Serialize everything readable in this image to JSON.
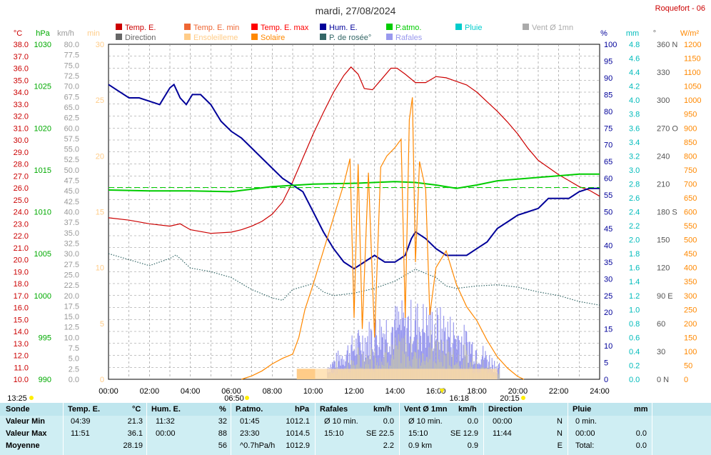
{
  "title": "mardi, 27/08/2024",
  "station": "Roquefort - 06",
  "legend": [
    {
      "label": "Temp. E.",
      "color": "#cc0000"
    },
    {
      "label": "Temp. E. min",
      "color": "#ee6633"
    },
    {
      "label": "Temp. E. max",
      "color": "#ff0000"
    },
    {
      "label": "Hum. E.",
      "color": "#000099"
    },
    {
      "label": "P.atmo.",
      "color": "#00cc00"
    },
    {
      "label": "Pluie",
      "color": "#00cccc"
    },
    {
      "label": "Vent Ø 1mn",
      "color": "#aaaaaa"
    },
    {
      "label": "Direction",
      "color": "#666666"
    },
    {
      "label": "Ensoleilleme",
      "color": "#ffcc88"
    },
    {
      "label": "Solaire",
      "color": "#ff8800"
    },
    {
      "label": "P. de rosée°",
      "color": "#336666"
    },
    {
      "label": "Rafales",
      "color": "#9999ee"
    }
  ],
  "axis_units": {
    "temp": "°C",
    "press": "hPa",
    "wind": "km/h",
    "sun": "min",
    "hum": "%",
    "rain": "mm",
    "dir": "°",
    "solar": "W/m²"
  },
  "markers": {
    "left_time": "13:25",
    "sunrise": "06:50",
    "noon": "16:18",
    "sunset": "20:15"
  },
  "chart_data": {
    "type": "line",
    "x_axis": {
      "label": "",
      "ticks": [
        "00:00",
        "02:00",
        "04:00",
        "06:00",
        "08:00",
        "10:00",
        "12:00",
        "14:00",
        "16:00",
        "18:00",
        "20:00",
        "22:00",
        "24:00"
      ],
      "range": [
        0,
        24
      ]
    },
    "y_axes": {
      "temp": {
        "range": [
          10,
          38
        ],
        "step": 1,
        "unit": "°C"
      },
      "pressure": {
        "range": [
          990,
          1030
        ],
        "step": 5,
        "unit": "hPa"
      },
      "wind": {
        "range": [
          0,
          80
        ],
        "step": 2.5,
        "unit": "km/h"
      },
      "sunshine": {
        "range": [
          0,
          30
        ],
        "step": 5,
        "unit": "min"
      },
      "humidity": {
        "range": [
          0,
          100
        ],
        "step": 5,
        "unit": "%"
      },
      "rain": {
        "range": [
          0,
          4.8
        ],
        "step": 0.2,
        "unit": "mm"
      },
      "direction": {
        "ticks": [
          "0 N",
          "30",
          "60",
          "90 E",
          "120",
          "150",
          "180 S",
          "210",
          "240",
          "270 O",
          "300",
          "330",
          "360 N"
        ]
      },
      "solar": {
        "range": [
          0,
          1200
        ],
        "step": 50,
        "unit": "W/m²"
      }
    },
    "series": [
      {
        "name": "Temp. E.",
        "axis": "temp",
        "color": "#cc0000",
        "points": [
          [
            0,
            23.5
          ],
          [
            1,
            23.3
          ],
          [
            2,
            23.0
          ],
          [
            3,
            22.8
          ],
          [
            3.5,
            23.0
          ],
          [
            4,
            22.5
          ],
          [
            5,
            22.2
          ],
          [
            6,
            22.3
          ],
          [
            6.5,
            22.5
          ],
          [
            7,
            22.8
          ],
          [
            7.5,
            23.2
          ],
          [
            8,
            23.8
          ],
          [
            8.5,
            24.8
          ],
          [
            9,
            26.5
          ],
          [
            9.5,
            28.5
          ],
          [
            10,
            30.5
          ],
          [
            10.5,
            32.3
          ],
          [
            11,
            34.0
          ],
          [
            11.5,
            35.4
          ],
          [
            11.85,
            36.1
          ],
          [
            12.2,
            35.5
          ],
          [
            12.5,
            34.3
          ],
          [
            12.9,
            34.2
          ],
          [
            13.3,
            35.0
          ],
          [
            13.8,
            36.0
          ],
          [
            14.1,
            36.0
          ],
          [
            14.5,
            35.5
          ],
          [
            15,
            34.8
          ],
          [
            15.5,
            34.8
          ],
          [
            16,
            35.3
          ],
          [
            16.5,
            35.2
          ],
          [
            17,
            34.9
          ],
          [
            17.5,
            34.6
          ],
          [
            18,
            34.0
          ],
          [
            18.5,
            33.2
          ],
          [
            19,
            32.4
          ],
          [
            19.5,
            31.5
          ],
          [
            20,
            30.5
          ],
          [
            20.5,
            29.3
          ],
          [
            21,
            28.3
          ],
          [
            21.5,
            27.7
          ],
          [
            22,
            27.1
          ],
          [
            22.5,
            26.6
          ],
          [
            23,
            26.1
          ],
          [
            23.5,
            25.8
          ],
          [
            24,
            25.3
          ]
        ]
      },
      {
        "name": "Hum. E.",
        "axis": "humidity",
        "color": "#000099",
        "points": [
          [
            0,
            88
          ],
          [
            0.5,
            86
          ],
          [
            1,
            84
          ],
          [
            1.5,
            84
          ],
          [
            2,
            83
          ],
          [
            2.5,
            82
          ],
          [
            3,
            87
          ],
          [
            3.2,
            88
          ],
          [
            3.5,
            84
          ],
          [
            3.8,
            82
          ],
          [
            4.1,
            85
          ],
          [
            4.5,
            85
          ],
          [
            5,
            82
          ],
          [
            5.5,
            77
          ],
          [
            6,
            74
          ],
          [
            6.5,
            72
          ],
          [
            7,
            69
          ],
          [
            7.5,
            66
          ],
          [
            8,
            63
          ],
          [
            8.5,
            60
          ],
          [
            9,
            58
          ],
          [
            9.5,
            56
          ],
          [
            10,
            50
          ],
          [
            10.5,
            44
          ],
          [
            11,
            39
          ],
          [
            11.5,
            35
          ],
          [
            12,
            33
          ],
          [
            12.5,
            35
          ],
          [
            13,
            37
          ],
          [
            13.5,
            35
          ],
          [
            14,
            35
          ],
          [
            14.5,
            37
          ],
          [
            14.8,
            42
          ],
          [
            15,
            44
          ],
          [
            15.5,
            42
          ],
          [
            16,
            39
          ],
          [
            16.5,
            37
          ],
          [
            17,
            37
          ],
          [
            17.5,
            37
          ],
          [
            18,
            39
          ],
          [
            18.5,
            41
          ],
          [
            19,
            45
          ],
          [
            19.5,
            47
          ],
          [
            20,
            49
          ],
          [
            20.5,
            50
          ],
          [
            21,
            51
          ],
          [
            21.5,
            54
          ],
          [
            22,
            54
          ],
          [
            22.5,
            54
          ],
          [
            23,
            56
          ],
          [
            23.5,
            57
          ],
          [
            24,
            57
          ]
        ]
      },
      {
        "name": "P.atmo.",
        "axis": "pressure",
        "color": "#00cc00",
        "points": [
          [
            0,
            1012.6
          ],
          [
            2,
            1012.5
          ],
          [
            4,
            1012.5
          ],
          [
            6,
            1012.4
          ],
          [
            8,
            1013.0
          ],
          [
            10,
            1013.3
          ],
          [
            12,
            1013.4
          ],
          [
            14,
            1013.6
          ],
          [
            15,
            1013.5
          ],
          [
            16,
            1013.2
          ],
          [
            17,
            1012.8
          ],
          [
            18,
            1013.2
          ],
          [
            19,
            1013.7
          ],
          [
            20,
            1013.9
          ],
          [
            21,
            1014.1
          ],
          [
            22,
            1014.3
          ],
          [
            23,
            1014.5
          ],
          [
            24,
            1014.5
          ]
        ]
      },
      {
        "name": "P. de rosée°",
        "axis": "temp",
        "color": "#336666",
        "points": [
          [
            0,
            20.5
          ],
          [
            1,
            20.0
          ],
          [
            2,
            19.5
          ],
          [
            3,
            20.1
          ],
          [
            3.3,
            20.4
          ],
          [
            4,
            19.3
          ],
          [
            5,
            19.0
          ],
          [
            6,
            18.5
          ],
          [
            7,
            17.5
          ],
          [
            8,
            16.8
          ],
          [
            8.5,
            16.6
          ],
          [
            9,
            17.5
          ],
          [
            10,
            18.0
          ],
          [
            10.5,
            17.3
          ],
          [
            11,
            17.0
          ],
          [
            12,
            17.2
          ],
          [
            13,
            17.6
          ],
          [
            14,
            18.2
          ],
          [
            15,
            19.2
          ],
          [
            16,
            18.5
          ],
          [
            16.5,
            17.8
          ],
          [
            17,
            17.6
          ],
          [
            18,
            17.8
          ],
          [
            19,
            17.9
          ],
          [
            20,
            17.7
          ],
          [
            21,
            17.3
          ],
          [
            22,
            17.0
          ],
          [
            23,
            16.5
          ],
          [
            24,
            16.2
          ]
        ]
      },
      {
        "name": "Solaire",
        "axis": "solar",
        "color": "#ff8800",
        "points": [
          [
            6.5,
            0
          ],
          [
            7,
            12
          ],
          [
            7.5,
            30
          ],
          [
            8,
            55
          ],
          [
            8.5,
            75
          ],
          [
            9,
            90
          ],
          [
            9.3,
            150
          ],
          [
            9.6,
            250
          ],
          [
            10,
            340
          ],
          [
            10.5,
            460
          ],
          [
            11,
            580
          ],
          [
            11.5,
            700
          ],
          [
            11.8,
            790
          ],
          [
            12,
            220
          ],
          [
            12.2,
            770
          ],
          [
            12.4,
            180
          ],
          [
            12.7,
            740
          ],
          [
            13,
            150
          ],
          [
            13.3,
            760
          ],
          [
            13.6,
            800
          ],
          [
            14,
            830
          ],
          [
            14.3,
            860
          ],
          [
            14.5,
            220
          ],
          [
            14.7,
            930
          ],
          [
            14.85,
            1010
          ],
          [
            15,
            420
          ],
          [
            15.2,
            780
          ],
          [
            15.5,
            680
          ],
          [
            15.7,
            230
          ],
          [
            16,
            400
          ],
          [
            16.5,
            460
          ],
          [
            17,
            340
          ],
          [
            17.5,
            260
          ],
          [
            18,
            210
          ],
          [
            18.5,
            140
          ],
          [
            19,
            80
          ],
          [
            19.5,
            40
          ],
          [
            20,
            10
          ],
          [
            20.3,
            0
          ]
        ]
      }
    ]
  },
  "summary": {
    "header": {
      "c1": "Sonde",
      "c2": "Temp. E.",
      "c2u": "°C",
      "c3": "Hum. E.",
      "c3u": "%",
      "c4": "P.atmo.",
      "c4u": "hPa",
      "c5": "Rafales",
      "c5u": "km/h",
      "c6": "Vent Ø 1mn",
      "c6u": "km/h",
      "c7": "Direction",
      "c8": "Pluie",
      "c8u": "mm"
    },
    "rows": [
      {
        "label": "Valeur Min",
        "temp_t": "04:39",
        "temp_v": "21.3",
        "hum_t": "11:32",
        "hum_v": "32",
        "press_t": "01:45",
        "press_v": "1012.1",
        "gust_t": "Ø 10 min.",
        "gust_v": "0.0",
        "wind_t": "Ø 10 min.",
        "wind_v": "0.0",
        "dir_t": "00:00",
        "dir_v": "N",
        "rain_t": "0 min.",
        "rain_v": ""
      },
      {
        "label": "Valeur Max",
        "temp_t": "11:51",
        "temp_v": "36.1",
        "hum_t": "00:00",
        "hum_v": "88",
        "press_t": "23:30",
        "press_v": "1014.5",
        "gust_t": "15:10",
        "gust_v": "SE 22.5",
        "wind_t": "15:10",
        "wind_v": "SE 12.9",
        "dir_t": "11:44",
        "dir_v": "N",
        "rain_t": "00:00",
        "rain_v": "0.0"
      },
      {
        "label": "Moyenne",
        "temp_t": "",
        "temp_v": "28.19",
        "hum_t": "",
        "hum_v": "56",
        "press_t": "^0.7hPa/h",
        "press_v": "1012.9",
        "gust_t": "",
        "gust_v": "2.2",
        "wind_t": "0.9 km",
        "wind_v": "0.9",
        "dir_t": "",
        "dir_v": "E",
        "rain_t": "Total:",
        "rain_v": "0.0"
      }
    ]
  }
}
